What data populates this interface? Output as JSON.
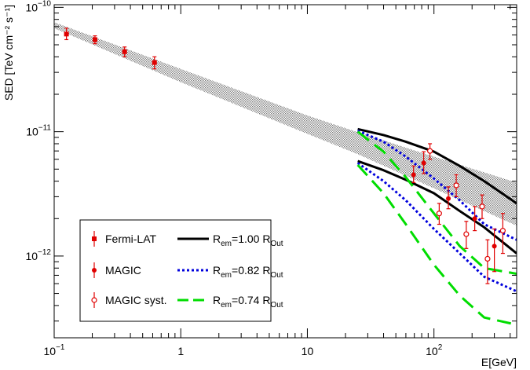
{
  "chart_data": {
    "type": "scatter",
    "xlabel": "E[GeV]",
    "ylabel": "SED [TeV cm⁻² s⁻¹]",
    "x_scale": "log",
    "y_scale": "log",
    "xlim": [
      0.1,
      450
    ],
    "ylim": [
      2.2e-13,
      1.05e-10
    ],
    "x_ticks": [
      {
        "value": 0.1,
        "label": "10",
        "exp": "−1"
      },
      {
        "value": 1,
        "label": "1",
        "exp": ""
      },
      {
        "value": 10,
        "label": "10",
        "exp": ""
      },
      {
        "value": 100,
        "label": "10",
        "exp": "2"
      }
    ],
    "y_ticks": [
      {
        "value": 1e-12,
        "label": "10",
        "exp": "−12"
      },
      {
        "value": 1e-11,
        "label": "10",
        "exp": "−11"
      },
      {
        "value": 1e-10,
        "label": "10",
        "exp": "−10"
      }
    ],
    "band": {
      "x": [
        0.1,
        1,
        10,
        25,
        100,
        450
      ],
      "upper": [
        7.6e-11,
        3.2e-11,
        1.35e-11,
        9.9e-12,
        6.3e-12,
        3.9e-12
      ],
      "lower": [
        6.8e-11,
        2.5e-11,
        9.6e-12,
        6.6e-12,
        3.5e-12,
        1.75e-12
      ],
      "color": "#808080"
    },
    "series": [
      {
        "name": "Fermi-LAT",
        "marker": "square",
        "color": "#e00000",
        "x": [
          0.125,
          0.21,
          0.36,
          0.62
        ],
        "y": [
          6.1e-11,
          5.5e-11,
          4.4e-11,
          3.6e-11
        ],
        "yerr_lo": [
          5.5e-11,
          5.1e-11,
          4e-11,
          3.2e-11
        ],
        "yerr_hi": [
          6.8e-11,
          5.9e-11,
          4.8e-11,
          4e-11
        ]
      },
      {
        "name": "MAGIC",
        "marker": "circle-filled",
        "color": "#e00000",
        "x": [
          69,
          83,
          130,
          210,
          300
        ],
        "y": [
          4.5e-12,
          5.6e-12,
          2.9e-12,
          2e-12,
          1.2e-12
        ],
        "yerr_lo": [
          3.9e-12,
          4.6e-12,
          2.4e-12,
          1.6e-12,
          7.5e-13
        ],
        "yerr_hi": [
          5.3e-12,
          6.9e-12,
          3.6e-12,
          2.5e-12,
          1.65e-12
        ]
      },
      {
        "name": "MAGIC syst.",
        "marker": "circle-open",
        "color": "#e00000",
        "x": [
          93,
          110,
          150,
          180,
          240,
          265,
          350
        ],
        "y": [
          7e-12,
          2.2e-12,
          3.7e-12,
          1.5e-12,
          2.5e-12,
          9.5e-13,
          1.6e-12
        ],
        "yerr_lo": [
          6e-12,
          1.8e-12,
          3e-12,
          1.15e-12,
          2e-12,
          6e-13,
          1.05e-12
        ],
        "yerr_hi": [
          8e-12,
          2.65e-12,
          4.5e-12,
          1.9e-12,
          3.1e-12,
          1.35e-12,
          2.2e-12
        ]
      }
    ],
    "curves": [
      {
        "name": "R_em=1.00 R_Out",
        "label_base": "R",
        "label_sub": "em",
        "label_mid": "=1.00 R",
        "label_sub2": "Out",
        "color": "#000000",
        "style": "solid",
        "lines": [
          {
            "x": [
              25,
              40,
              60,
              100,
              160,
              250,
              450
            ],
            "y": [
              1.05e-11,
              9.4e-12,
              8.3e-12,
              6.9e-12,
              5.3e-12,
              4e-12,
              2.65e-12
            ]
          },
          {
            "x": [
              25,
              40,
              60,
              100,
              160,
              250,
              450
            ],
            "y": [
              5.8e-12,
              4.9e-12,
              4.1e-12,
              3.2e-12,
              2.3e-12,
              1.7e-12,
              1.05e-12
            ]
          }
        ]
      },
      {
        "name": "R_em=0.82 R_Out",
        "label_base": "R",
        "label_sub": "em",
        "label_mid": "=0.82 R",
        "label_sub2": "Out",
        "color": "#0000dd",
        "style": "dotted",
        "lines": [
          {
            "x": [
              25,
              40,
              60,
              100,
              160,
              250,
              450
            ],
            "y": [
              1.02e-11,
              8.3e-12,
              6.3e-12,
              4.2e-12,
              2.8e-12,
              1.8e-12,
              1.35e-12
            ]
          },
          {
            "x": [
              25,
              40,
              60,
              100,
              160,
              250,
              450
            ],
            "y": [
              5.6e-12,
              4e-12,
              2.8e-12,
              1.65e-12,
              1.05e-12,
              6.8e-13,
              5.2e-13
            ]
          }
        ]
      },
      {
        "name": "R_em=0.74 R_Out",
        "label_base": "R",
        "label_sub": "em",
        "label_mid": "=0.74 R",
        "label_sub2": "Out",
        "color": "#00dd00",
        "style": "dashed",
        "lines": [
          {
            "x": [
              25,
              40,
              60,
              100,
              160,
              250,
              450
            ],
            "y": [
              1e-11,
              6.9e-12,
              4.3e-12,
              2.2e-12,
              1.2e-12,
              8e-13,
              7.2e-13
            ]
          },
          {
            "x": [
              25,
              40,
              60,
              100,
              160,
              250,
              450
            ],
            "y": [
              5.4e-12,
              3.2e-12,
              1.8e-12,
              8.5e-13,
              4.8e-13,
              3.2e-13,
              2.8e-13
            ]
          }
        ]
      }
    ],
    "legend": {
      "placement": "bottom-left",
      "entries_left": [
        "Fermi-LAT",
        "MAGIC",
        "MAGIC syst."
      ]
    },
    "grid": false
  }
}
